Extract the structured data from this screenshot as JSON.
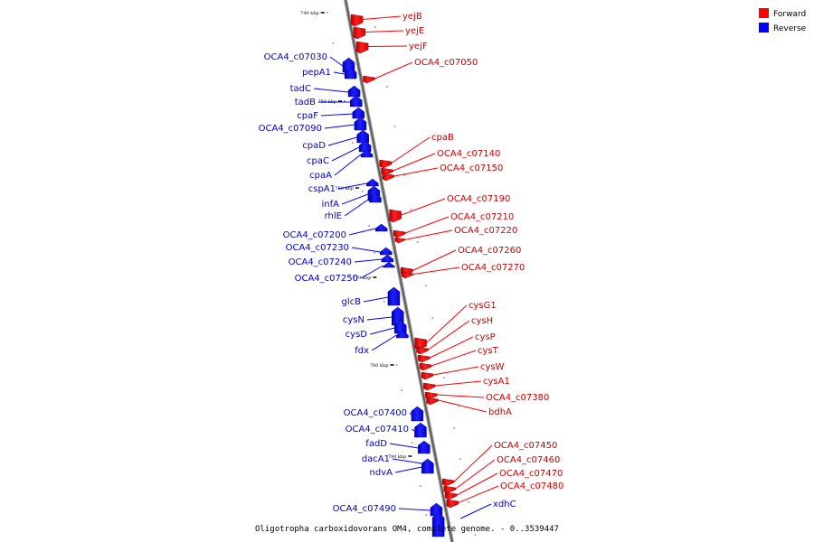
{
  "title": "Oligotropha carboxidovorans OM4, complete genome. - 0..3539447",
  "legend": [
    {
      "name": "Forward",
      "color": "#ff0000"
    },
    {
      "name": "Reverse",
      "color": "#0000ff"
    }
  ],
  "kbp_labels": [
    "740 kbp",
    "750 kbp",
    "760 kbp",
    "770 kbp",
    "780 kbp",
    "790 kbp"
  ],
  "forward_genes": [
    "yejB",
    "yejE",
    "yejF",
    "OCA4_c07050",
    "cpaB",
    "OCA4_c07140",
    "OCA4_c07150",
    "OCA4_c07190",
    "OCA4_c07210",
    "OCA4_c07220",
    "OCA4_c07260",
    "OCA4_c07270",
    "cysG1",
    "cysH",
    "cysP",
    "cysT",
    "cysW",
    "cysA1",
    "OCA4_c07380",
    "bdhA",
    "OCA4_c07450",
    "OCA4_c07460",
    "OCA4_c07470",
    "OCA4_c07480"
  ],
  "reverse_genes": [
    "OCA4_c07030",
    "pepA1",
    "tadC",
    "tadB",
    "cpaF",
    "OCA4_c07090",
    "cpaD",
    "cpaC",
    "cpaA",
    "cspA1",
    "infA",
    "rhlE",
    "OCA4_c07200",
    "OCA4_c07230",
    "OCA4_c07240",
    "OCA4_c07250",
    "glcB",
    "cysN",
    "cysD",
    "fdx",
    "OCA4_c07400",
    "OCA4_c07410",
    "fadD",
    "dacA1",
    "ndvA",
    "OCA4_c07490",
    "xdhC"
  ]
}
